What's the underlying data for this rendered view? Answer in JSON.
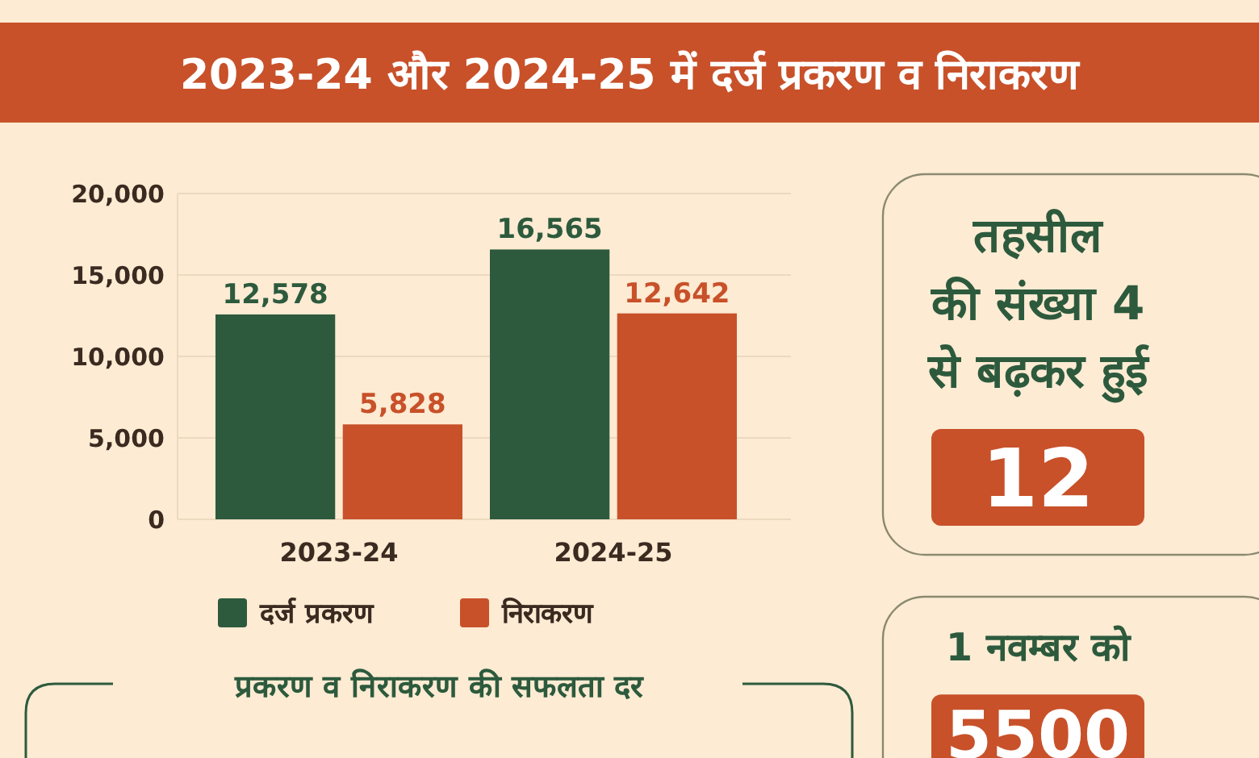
{
  "chart_data": [
    {
      "type": "bar",
      "title": "2023-24 और 2024-25 में दर्ज प्रकरण व निराकरण",
      "categories": [
        "2023-24",
        "2024-25"
      ],
      "series": [
        {
          "name": "दर्ज प्रकरण",
          "color": "#2d5a3d",
          "values": [
            12578,
            16565
          ],
          "value_labels": [
            "12,578",
            "16,565"
          ]
        },
        {
          "name": "निराकरण",
          "color": "#c8512a",
          "values": [
            5828,
            12642
          ],
          "value_labels": [
            "5,828",
            "12,642"
          ]
        }
      ],
      "ylim": [
        0,
        20000
      ],
      "yticks": [
        {
          "value": 0,
          "label": "0"
        },
        {
          "value": 5000,
          "label": "5,000"
        },
        {
          "value": 10000,
          "label": "10,000"
        },
        {
          "value": 15000,
          "label": "15,000"
        },
        {
          "value": 20000,
          "label": "20,000"
        }
      ],
      "grid": "y",
      "legend": "bottom"
    },
    {
      "type": "other",
      "annotations": [
        "तहसील",
        "की संख्या 4",
        "से बढ़कर हुई",
        "12"
      ]
    },
    {
      "type": "other",
      "annotations": [
        "1 नवम्बर को",
        "5500"
      ]
    },
    {
      "type": "other",
      "title": "प्रकरण व निराकरण की सफलता दर"
    }
  ]
}
